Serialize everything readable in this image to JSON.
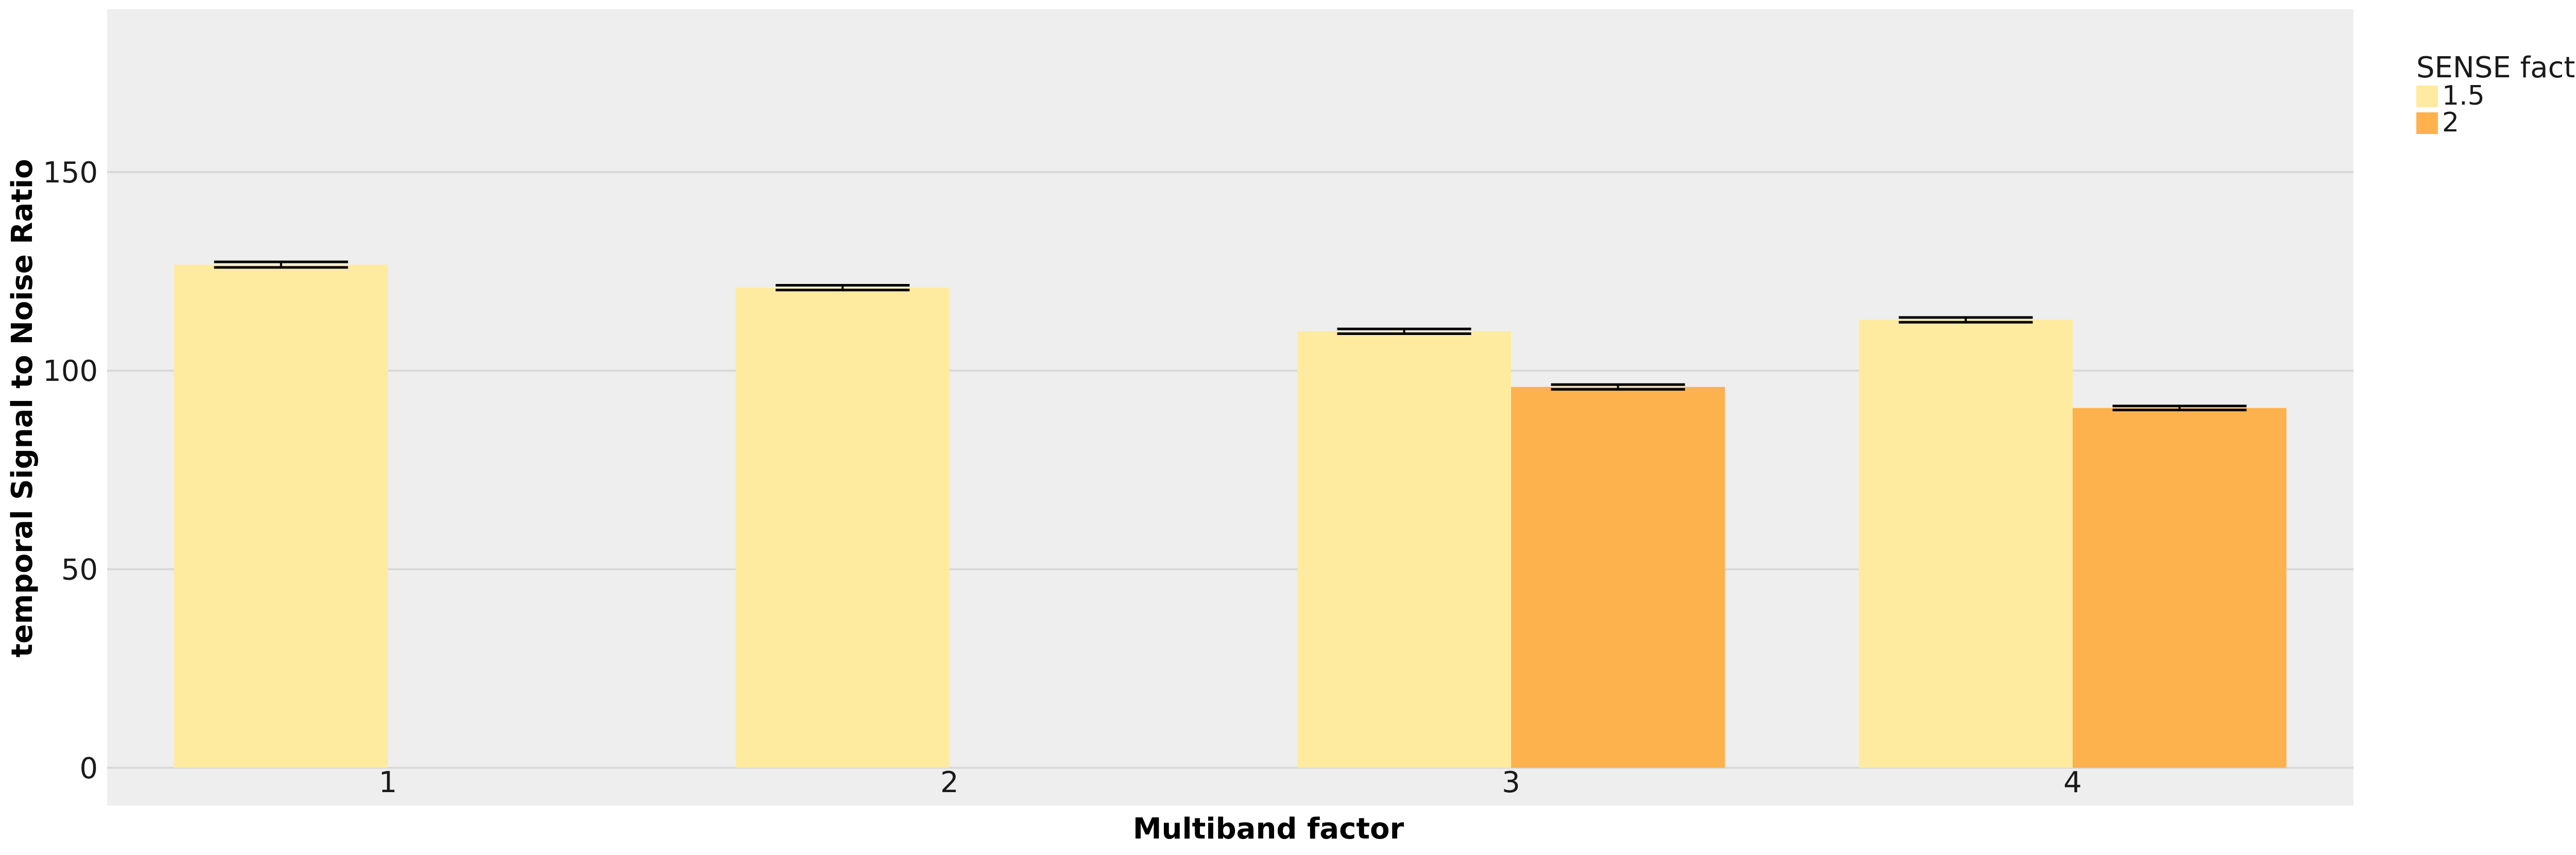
{
  "chart_data": {
    "type": "bar",
    "title": "",
    "xlabel": "Multiband factor",
    "ylabel": "temporal Signal to Noise Ratio",
    "categories": [
      "1",
      "2",
      "3",
      "4"
    ],
    "series": [
      {
        "name": "1.5",
        "color": "#feeb9f",
        "values": [
          126.7,
          120.9,
          109.9,
          112.8
        ],
        "err": [
          0.7,
          0.6,
          0.6,
          0.6
        ]
      },
      {
        "name": "2",
        "color": "#fdb24e",
        "values": [
          null,
          null,
          95.9,
          90.6
        ],
        "err": [
          null,
          null,
          0.6,
          0.5
        ]
      }
    ],
    "ylim": [
      -9.5,
      191
    ],
    "yticks": [
      0,
      50,
      100,
      150
    ],
    "grid": true,
    "legend": {
      "title": "SENSE factor",
      "position": "top-right, outside plot"
    },
    "panel_background": "#eeeeee",
    "grid_color": "#d9d9d9"
  }
}
